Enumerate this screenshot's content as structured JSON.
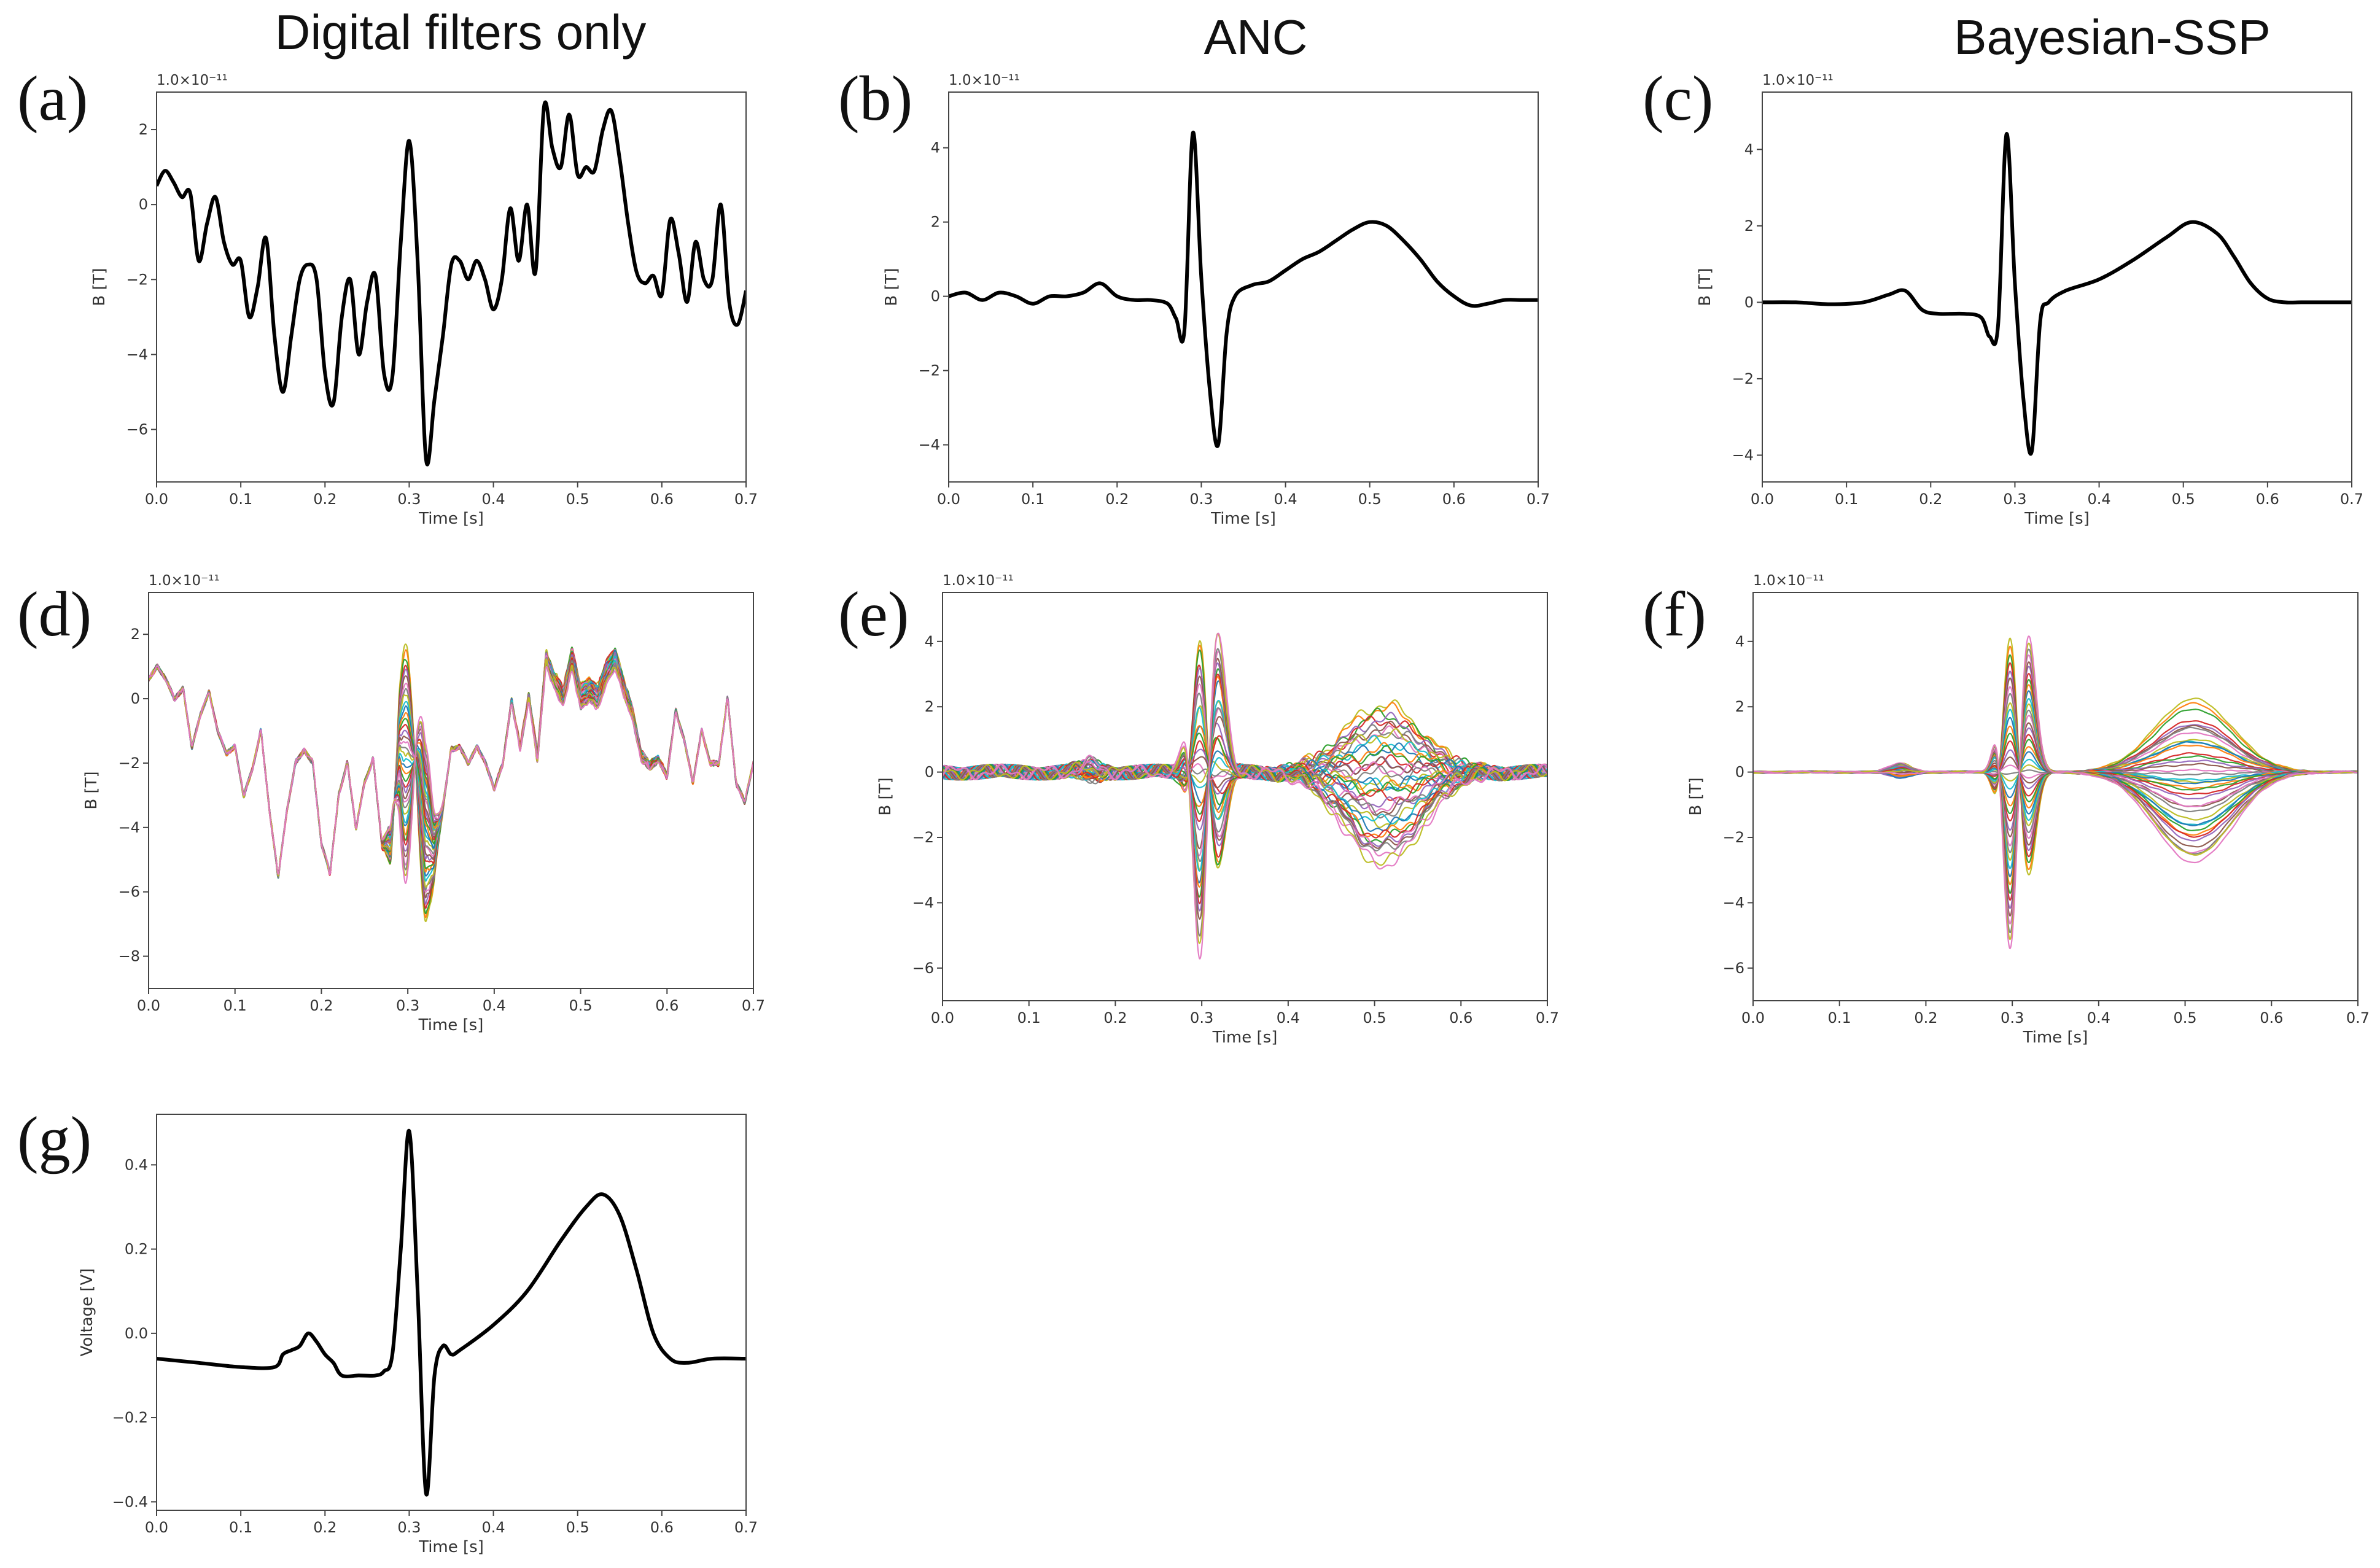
{
  "column_titles": [
    "Digital filters only",
    "ANC",
    "Bayesian-SSP"
  ],
  "colors": {
    "mean_trace": "#000000",
    "channel_palette": [
      "#1f77b4",
      "#ff7f0e",
      "#2ca02c",
      "#d62728",
      "#9467bd",
      "#8c564b",
      "#e377c2",
      "#7f7f7f",
      "#bcbd22",
      "#17becf"
    ],
    "peak_positive": "#bcbd22",
    "peak_negative": "#e377c2"
  },
  "chart_data": [
    {
      "id": "a",
      "panel_label": "(a)",
      "type": "line",
      "title": "",
      "xlabel": "Time [s]",
      "ylabel": "B [T]",
      "offset_label": "1.0×10⁻¹¹",
      "xlim": [
        0,
        0.7
      ],
      "ylim": [
        -7.4,
        3.0
      ],
      "xticks": [
        0.0,
        0.1,
        0.2,
        0.3,
        0.4,
        0.5,
        0.6,
        0.7
      ],
      "xtick_labels": [
        "0.0",
        "0.1",
        "0.2",
        "0.3",
        "0.4",
        "0.5",
        "0.6",
        "0.7"
      ],
      "yticks": [
        -6,
        -4,
        -2,
        0,
        2
      ],
      "ytick_labels": [
        "−6",
        "−4",
        "−2",
        "0",
        "2"
      ],
      "series": [
        {
          "name": "B",
          "x": [
            0.0,
            0.01,
            0.02,
            0.03,
            0.04,
            0.05,
            0.06,
            0.07,
            0.08,
            0.09,
            0.1,
            0.11,
            0.12,
            0.13,
            0.14,
            0.15,
            0.16,
            0.17,
            0.18,
            0.19,
            0.2,
            0.21,
            0.22,
            0.23,
            0.24,
            0.25,
            0.26,
            0.27,
            0.28,
            0.29,
            0.3,
            0.31,
            0.32,
            0.33,
            0.34,
            0.35,
            0.36,
            0.37,
            0.38,
            0.39,
            0.4,
            0.41,
            0.42,
            0.43,
            0.44,
            0.45,
            0.46,
            0.47,
            0.48,
            0.49,
            0.5,
            0.51,
            0.52,
            0.53,
            0.54,
            0.55,
            0.56,
            0.57,
            0.58,
            0.59,
            0.6,
            0.61,
            0.62,
            0.63,
            0.64,
            0.65,
            0.66,
            0.67,
            0.68,
            0.69,
            0.7
          ],
          "y": [
            0.5,
            0.9,
            0.6,
            0.2,
            0.3,
            -1.5,
            -0.5,
            0.2,
            -1.0,
            -1.6,
            -1.5,
            -3.0,
            -2.2,
            -0.9,
            -3.5,
            -5.0,
            -3.5,
            -2.0,
            -1.6,
            -2.0,
            -4.5,
            -5.3,
            -3.0,
            -2.0,
            -4.0,
            -2.6,
            -1.9,
            -4.5,
            -4.6,
            -1.0,
            1.7,
            -1.5,
            -6.8,
            -5.2,
            -3.5,
            -1.6,
            -1.5,
            -2.0,
            -1.5,
            -2.0,
            -2.8,
            -2.0,
            -0.1,
            -1.5,
            0.0,
            -1.8,
            2.6,
            1.5,
            1.0,
            2.4,
            0.8,
            1.0,
            0.9,
            2.0,
            2.5,
            1.2,
            -0.5,
            -1.8,
            -2.1,
            -1.9,
            -2.4,
            -0.4,
            -1.3,
            -2.6,
            -1.0,
            -2.0,
            -2.0,
            0.0,
            -2.6,
            -3.2,
            -2.3
          ]
        }
      ]
    },
    {
      "id": "b",
      "panel_label": "(b)",
      "type": "line",
      "title": "",
      "xlabel": "Time [s]",
      "ylabel": "B [T]",
      "offset_label": "1.0×10⁻¹¹",
      "xlim": [
        0,
        0.7
      ],
      "ylim": [
        -5.0,
        5.5
      ],
      "xticks": [
        0.0,
        0.1,
        0.2,
        0.3,
        0.4,
        0.5,
        0.6,
        0.7
      ],
      "xtick_labels": [
        "0.0",
        "0.1",
        "0.2",
        "0.3",
        "0.4",
        "0.5",
        "0.6",
        "0.7"
      ],
      "yticks": [
        -4,
        -2,
        0,
        2,
        4
      ],
      "ytick_labels": [
        "−4",
        "−2",
        "0",
        "2",
        "4"
      ],
      "series": [
        {
          "name": "B",
          "x": [
            0.0,
            0.02,
            0.04,
            0.06,
            0.08,
            0.1,
            0.12,
            0.14,
            0.16,
            0.18,
            0.2,
            0.22,
            0.24,
            0.26,
            0.27,
            0.28,
            0.29,
            0.3,
            0.31,
            0.32,
            0.33,
            0.34,
            0.36,
            0.38,
            0.4,
            0.42,
            0.44,
            0.46,
            0.48,
            0.5,
            0.52,
            0.54,
            0.56,
            0.58,
            0.6,
            0.62,
            0.64,
            0.66,
            0.68,
            0.7
          ],
          "y": [
            0.0,
            0.1,
            -0.1,
            0.1,
            0.0,
            -0.2,
            0.0,
            0.0,
            0.1,
            0.35,
            0.0,
            -0.1,
            -0.1,
            -0.2,
            -0.6,
            -0.9,
            4.4,
            0.5,
            -2.5,
            -4.0,
            -1.0,
            0.0,
            0.3,
            0.4,
            0.7,
            1.0,
            1.2,
            1.5,
            1.8,
            2.0,
            1.9,
            1.5,
            1.0,
            0.4,
            0.0,
            -0.25,
            -0.2,
            -0.1,
            -0.1,
            -0.1
          ]
        }
      ]
    },
    {
      "id": "c",
      "panel_label": "(c)",
      "type": "line",
      "title": "",
      "xlabel": "Time [s]",
      "ylabel": "B [T]",
      "offset_label": "1.0×10⁻¹¹",
      "xlim": [
        0,
        0.7
      ],
      "ylim": [
        -4.7,
        5.5
      ],
      "xticks": [
        0.0,
        0.1,
        0.2,
        0.3,
        0.4,
        0.5,
        0.6,
        0.7
      ],
      "xtick_labels": [
        "0.0",
        "0.1",
        "0.2",
        "0.3",
        "0.4",
        "0.5",
        "0.6",
        "0.7"
      ],
      "yticks": [
        -4,
        -2,
        0,
        2,
        4
      ],
      "ytick_labels": [
        "−4",
        "−2",
        "0",
        "2",
        "4"
      ],
      "series": [
        {
          "name": "B",
          "x": [
            0.0,
            0.04,
            0.08,
            0.12,
            0.15,
            0.17,
            0.19,
            0.21,
            0.24,
            0.26,
            0.27,
            0.28,
            0.29,
            0.3,
            0.31,
            0.32,
            0.33,
            0.34,
            0.36,
            0.4,
            0.44,
            0.48,
            0.51,
            0.54,
            0.56,
            0.58,
            0.6,
            0.62,
            0.64,
            0.66,
            0.7
          ],
          "y": [
            0.0,
            0.0,
            -0.05,
            0.0,
            0.2,
            0.3,
            -0.2,
            -0.3,
            -0.3,
            -0.4,
            -0.9,
            -0.6,
            4.4,
            0.5,
            -2.5,
            -3.9,
            -0.5,
            0.0,
            0.3,
            0.6,
            1.1,
            1.7,
            2.1,
            1.8,
            1.2,
            0.5,
            0.1,
            0.0,
            0.0,
            0.0,
            0.0
          ]
        }
      ]
    },
    {
      "id": "d",
      "panel_label": "(d)",
      "type": "line",
      "title": "",
      "xlabel": "Time [s]",
      "ylabel": "B [T]",
      "offset_label": "1.0×10⁻¹¹",
      "xlim": [
        0,
        0.7
      ],
      "ylim": [
        -9.0,
        3.3
      ],
      "xticks": [
        0.0,
        0.1,
        0.2,
        0.3,
        0.4,
        0.5,
        0.6,
        0.7
      ],
      "xtick_labels": [
        "0.0",
        "0.1",
        "0.2",
        "0.3",
        "0.4",
        "0.5",
        "0.6",
        "0.7"
      ],
      "yticks": [
        -8,
        -6,
        -4,
        -2,
        0,
        2
      ],
      "ytick_labels": [
        "−8",
        "−6",
        "−4",
        "−2",
        "0",
        "2"
      ],
      "channels": 40,
      "common_mode": {
        "x": [
          0.0,
          0.01,
          0.02,
          0.03,
          0.04,
          0.05,
          0.06,
          0.07,
          0.08,
          0.09,
          0.1,
          0.11,
          0.12,
          0.13,
          0.14,
          0.15,
          0.16,
          0.17,
          0.18,
          0.19,
          0.2,
          0.21,
          0.22,
          0.23,
          0.24,
          0.25,
          0.26,
          0.27,
          0.28,
          0.29,
          0.3,
          0.31,
          0.32,
          0.33,
          0.34,
          0.35,
          0.36,
          0.37,
          0.38,
          0.39,
          0.4,
          0.41,
          0.42,
          0.43,
          0.44,
          0.45,
          0.46,
          0.47,
          0.48,
          0.49,
          0.5,
          0.51,
          0.52,
          0.53,
          0.54,
          0.55,
          0.56,
          0.57,
          0.58,
          0.59,
          0.6,
          0.61,
          0.62,
          0.63,
          0.64,
          0.65,
          0.66,
          0.67,
          0.68,
          0.69,
          0.7
        ],
        "y": [
          0.6,
          1.0,
          0.6,
          0.0,
          0.3,
          -1.5,
          -0.5,
          0.2,
          -1.0,
          -1.7,
          -1.5,
          -3.0,
          -2.2,
          -1.0,
          -3.5,
          -5.5,
          -3.5,
          -2.0,
          -1.6,
          -2.0,
          -4.5,
          -5.4,
          -3.0,
          -2.0,
          -4.0,
          -2.6,
          -1.9,
          -4.5,
          -4.6,
          -1.5,
          -1.5,
          -2.0,
          -4.5,
          -4.8,
          -3.5,
          -1.6,
          -1.5,
          -2.0,
          -1.5,
          -2.0,
          -2.8,
          -2.0,
          -0.1,
          -1.5,
          0.0,
          -1.8,
          1.2,
          0.5,
          0.0,
          1.2,
          0.0,
          0.2,
          0.0,
          0.8,
          1.2,
          0.3,
          -0.5,
          -1.8,
          -2.1,
          -1.9,
          -2.4,
          -0.4,
          -1.3,
          -2.6,
          -1.0,
          -2.0,
          -2.0,
          0.0,
          -2.6,
          -3.2,
          -2.0
        ]
      },
      "qrs_amplitude_range": [
        -6.0,
        4.5
      ],
      "t_wave_amplitude_range": [
        -1.0,
        1.5
      ]
    },
    {
      "id": "e",
      "panel_label": "(e)",
      "type": "line",
      "title": "",
      "xlabel": "Time [s]",
      "ylabel": "B [T]",
      "offset_label": "1.0×10⁻¹¹",
      "xlim": [
        0,
        0.7
      ],
      "ylim": [
        -7.0,
        5.5
      ],
      "xticks": [
        0.0,
        0.1,
        0.2,
        0.3,
        0.4,
        0.5,
        0.6,
        0.7
      ],
      "xtick_labels": [
        "0.0",
        "0.1",
        "0.2",
        "0.3",
        "0.4",
        "0.5",
        "0.6",
        "0.7"
      ],
      "yticks": [
        -6,
        -4,
        -2,
        0,
        2,
        4
      ],
      "ytick_labels": [
        "−6",
        "−4",
        "−2",
        "0",
        "2",
        "4"
      ],
      "channels": 40,
      "qrs_amplitude_range": [
        -6.0,
        4.4
      ],
      "t_wave_amplitude_range": [
        -2.8,
        2.0
      ],
      "noise_level": 0.15
    },
    {
      "id": "f",
      "panel_label": "(f)",
      "type": "line",
      "title": "",
      "xlabel": "Time [s]",
      "ylabel": "B [T]",
      "offset_label": "1.0×10⁻¹¹",
      "xlim": [
        0,
        0.7
      ],
      "ylim": [
        -7.0,
        5.5
      ],
      "xticks": [
        0.0,
        0.1,
        0.2,
        0.3,
        0.4,
        0.5,
        0.6,
        0.7
      ],
      "xtick_labels": [
        "0.0",
        "0.1",
        "0.2",
        "0.3",
        "0.4",
        "0.5",
        "0.6",
        "0.7"
      ],
      "yticks": [
        -6,
        -4,
        -2,
        0,
        2,
        4
      ],
      "ytick_labels": [
        "−6",
        "−4",
        "−2",
        "0",
        "2",
        "4"
      ],
      "channels": 40,
      "qrs_amplitude_range": [
        -5.8,
        4.4
      ],
      "t_wave_amplitude_range": [
        -2.8,
        2.1
      ],
      "noise_level": 0.02
    },
    {
      "id": "g",
      "panel_label": "(g)",
      "type": "line",
      "title": "",
      "xlabel": "Time [s]",
      "ylabel": "Voltage [V]",
      "offset_label": "",
      "xlim": [
        0,
        0.7
      ],
      "ylim": [
        -0.42,
        0.52
      ],
      "xticks": [
        0.0,
        0.1,
        0.2,
        0.3,
        0.4,
        0.5,
        0.6,
        0.7
      ],
      "xtick_labels": [
        "0.0",
        "0.1",
        "0.2",
        "0.3",
        "0.4",
        "0.5",
        "0.6",
        "0.7"
      ],
      "yticks": [
        -0.4,
        -0.2,
        0.0,
        0.2,
        0.4
      ],
      "ytick_labels": [
        "−0.4",
        "−0.2",
        "0.0",
        "0.2",
        "0.4"
      ],
      "series": [
        {
          "name": "ECG",
          "x": [
            0.0,
            0.05,
            0.1,
            0.14,
            0.15,
            0.16,
            0.17,
            0.18,
            0.19,
            0.2,
            0.21,
            0.22,
            0.24,
            0.26,
            0.27,
            0.28,
            0.29,
            0.3,
            0.31,
            0.32,
            0.33,
            0.34,
            0.35,
            0.36,
            0.4,
            0.44,
            0.48,
            0.51,
            0.53,
            0.55,
            0.57,
            0.59,
            0.61,
            0.63,
            0.66,
            0.7
          ],
          "y": [
            -0.06,
            -0.07,
            -0.08,
            -0.08,
            -0.05,
            -0.04,
            -0.03,
            0.0,
            -0.02,
            -0.05,
            -0.07,
            -0.1,
            -0.1,
            -0.1,
            -0.09,
            -0.05,
            0.2,
            0.48,
            0.1,
            -0.38,
            -0.1,
            -0.03,
            -0.05,
            -0.04,
            0.02,
            0.1,
            0.22,
            0.3,
            0.33,
            0.28,
            0.15,
            0.0,
            -0.06,
            -0.07,
            -0.06,
            -0.06
          ]
        }
      ]
    }
  ]
}
